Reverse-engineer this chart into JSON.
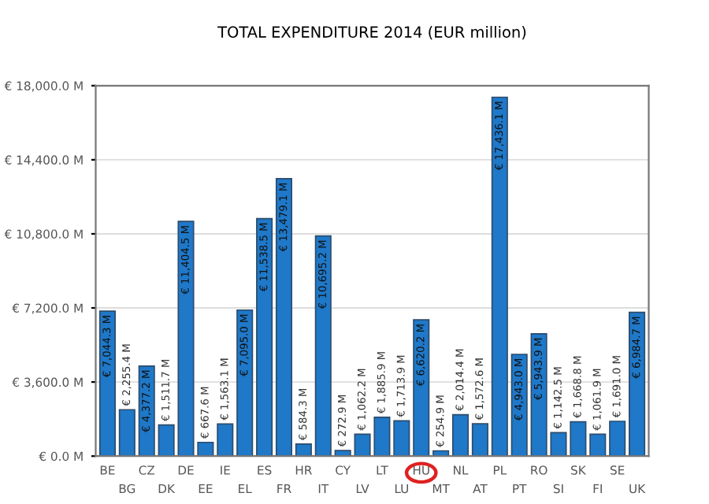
{
  "chart_data": {
    "type": "bar",
    "title": "TOTAL EXPENDITURE 2014 (EUR million)",
    "categories": [
      "BE",
      "BG",
      "CZ",
      "DK",
      "DE",
      "EE",
      "IE",
      "EL",
      "ES",
      "FR",
      "HR",
      "IT",
      "CY",
      "LV",
      "LT",
      "LU",
      "HU",
      "MT",
      "NL",
      "AT",
      "PL",
      "PT",
      "RO",
      "SI",
      "SK",
      "FI",
      "SE",
      "UK"
    ],
    "values": [
      7044.3,
      2255.4,
      4377.2,
      1511.7,
      11404.5,
      667.6,
      1563.1,
      7095.0,
      11538.5,
      13479.1,
      584.3,
      10695.2,
      272.9,
      1062.2,
      1885.9,
      1713.9,
      6620.2,
      254.9,
      2014.4,
      1572.6,
      17436.1,
      4943.0,
      5943.9,
      1142.5,
      1668.8,
      1061.9,
      1691.0,
      6984.7
    ],
    "value_labels": [
      "€ 7,044.3 M",
      "€ 2,255.4 M",
      "€ 4,377.2 M",
      "€ 1,511.7 M",
      "€ 11,404.5 M",
      "€ 667.6 M",
      "€ 1,563.1 M",
      "€ 7,095.0 M",
      "€ 11,538.5 M",
      "€ 13,479.1 M",
      "€ 584.3 M",
      "€ 10,695.2 M",
      "€ 272.9 M",
      "€ 1,062.2 M",
      "€ 1,885.9 M",
      "€ 1,713.9 M",
      "€ 6,620.2 M",
      "€ 254.9 M",
      "€ 2,014.4 M",
      "€ 1,572.6 M",
      "€ 17,436.1 M",
      "€ 4,943.0 M",
      "€ 5,943.9 M",
      "€ 1,142.5 M",
      "€ 1,668.8 M",
      "€ 1,061.9 M",
      "€ 1,691.0 M",
      "€ 6,984.7 M"
    ],
    "color": "#1f78c8",
    "ylim": [
      0,
      18000
    ],
    "yticks": [
      {
        "value": 0,
        "label": "€ 0.0 M"
      },
      {
        "value": 3600,
        "label": "€ 3,600.0 M"
      },
      {
        "value": 7200,
        "label": "€ 7,200.0 M"
      },
      {
        "value": 10800,
        "label": "€ 10,800.0 M"
      },
      {
        "value": 14400,
        "label": "€ 14,400.0 M"
      },
      {
        "value": 18000,
        "label": "€ 18,000.0 M"
      }
    ],
    "grid": "y"
  }
}
